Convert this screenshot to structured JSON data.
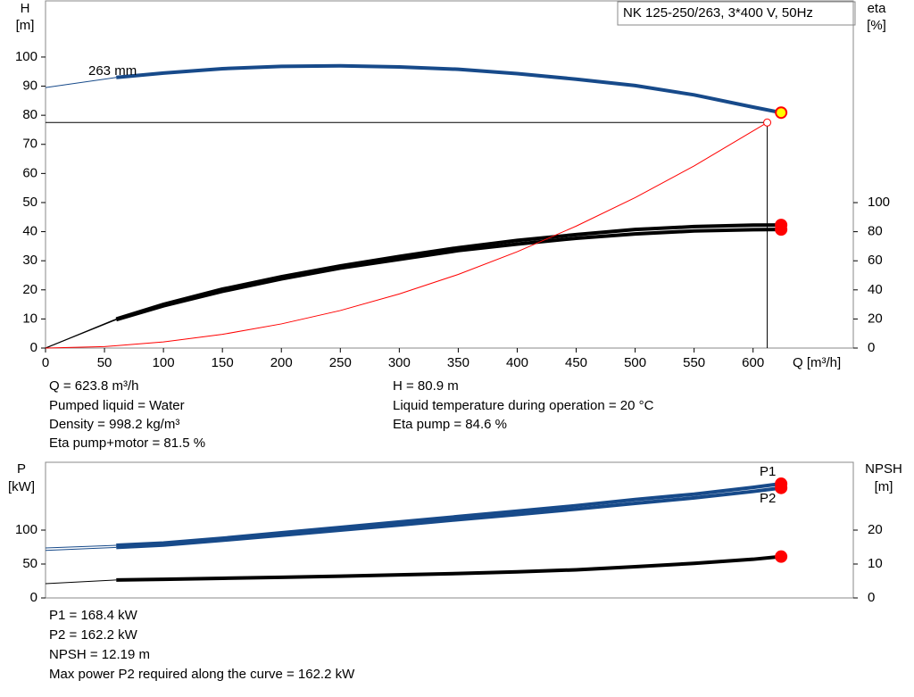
{
  "chart_data": [
    {
      "type": "line",
      "title": "NK 125-250/263, 3*400 V, 50Hz",
      "ylabel": [
        "H",
        "[m]"
      ],
      "y2label": [
        "eta",
        "[%]"
      ],
      "xlabel": "Q [m³/h]",
      "xlim": [
        0,
        685
      ],
      "xticks": [
        0,
        50,
        100,
        150,
        200,
        250,
        300,
        350,
        400,
        450,
        500,
        550,
        600
      ],
      "ylim": [
        0,
        119.3
      ],
      "yticks": [
        0,
        10,
        20,
        30,
        40,
        50,
        60,
        70,
        80,
        90,
        100
      ],
      "y2lim": [
        0,
        238.7
      ],
      "y2ticks": [
        0,
        20,
        40,
        60,
        80,
        100
      ],
      "x": [
        0,
        60,
        100,
        150,
        200,
        250,
        300,
        350,
        400,
        450,
        500,
        550,
        600,
        623.8
      ],
      "series": [
        {
          "name": "263 mm",
          "color": "#174a8a",
          "values": [
            89.5,
            93,
            94.5,
            96,
            96.8,
            97,
            96.6,
            95.8,
            94.3,
            92.4,
            90.2,
            87,
            82.8,
            80.9
          ],
          "thin_first_segment": true,
          "end_marker": "#ffff00"
        },
        {
          "color": "#000000",
          "axis": "y2",
          "values": [
            0,
            20,
            30,
            40.5,
            49,
            56.5,
            63,
            69,
            74,
            78,
            81.5,
            83.5,
            84.5,
            84.6
          ],
          "thin_first_segment": true,
          "end_marker": "#ff0000"
        },
        {
          "color": "#000000",
          "axis": "y2",
          "values": [
            0,
            19.5,
            29,
            39,
            47.5,
            55,
            61,
            67,
            71.5,
            75.5,
            78.5,
            80.5,
            81.4,
            81.5
          ],
          "thin_first_segment": true,
          "end_marker": "#ff0000"
        },
        {
          "color": "#ff0000",
          "x": [
            0,
            50,
            100,
            150,
            200,
            250,
            300,
            350,
            400,
            450,
            500,
            550,
            612
          ],
          "values": [
            0,
            0.5,
            2.1,
            4.7,
            8.3,
            12.9,
            18.6,
            25.3,
            33.1,
            41.9,
            51.7,
            62.6,
            77.5
          ],
          "end_marker": "open",
          "duty_lines": true
        }
      ]
    },
    {
      "type": "line",
      "ylabel": [
        "P",
        "[kW]"
      ],
      "y2label": [
        "NPSH",
        "[m]"
      ],
      "xlim": [
        0,
        685
      ],
      "ylim": [
        0,
        200
      ],
      "yticks": [
        0,
        50,
        100
      ],
      "y2lim": [
        0,
        40
      ],
      "y2ticks": [
        0,
        10,
        20
      ],
      "x": [
        0,
        60,
        100,
        150,
        200,
        250,
        300,
        350,
        400,
        450,
        500,
        550,
        600,
        623.8
      ],
      "series": [
        {
          "name": "P1",
          "color": "#174a8a",
          "values": [
            73.7,
            77.6,
            81,
            88,
            96,
            104,
            112,
            120,
            128,
            136,
            145,
            153,
            163,
            168.4
          ],
          "thin_first_segment": true,
          "end_marker": "#ff0000"
        },
        {
          "name": "P2",
          "color": "#174a8a",
          "values": [
            70,
            74.5,
            78,
            85,
            92.5,
            100,
            107.5,
            115.5,
            123,
            131,
            139.5,
            147.5,
            157,
            162.2
          ],
          "thin_first_segment": true,
          "end_marker": "#ff0000"
        },
        {
          "color": "#000000",
          "axis": "y2",
          "values": [
            4.2,
            5.3,
            5.5,
            5.8,
            6.1,
            6.4,
            6.8,
            7.2,
            7.7,
            8.3,
            9.2,
            10.2,
            11.4,
            12.19
          ],
          "thin_first_segment": true,
          "end_marker": "#ff0000"
        }
      ]
    }
  ],
  "info": {
    "left": [
      "Q = 623.8 m³/h",
      "Pumped liquid = Water",
      "Density = 998.2 kg/m³",
      "Eta pump+motor = 81.5 %"
    ],
    "right": [
      "H = 80.9 m",
      "Liquid temperature during operation = 20 °C",
      "Eta pump = 84.6 %"
    ],
    "bottom": [
      "P1 = 168.4 kW",
      "P2 = 162.2 kW",
      "NPSH = 12.19 m",
      "Max power P2 required along the curve = 162.2 kW"
    ]
  }
}
